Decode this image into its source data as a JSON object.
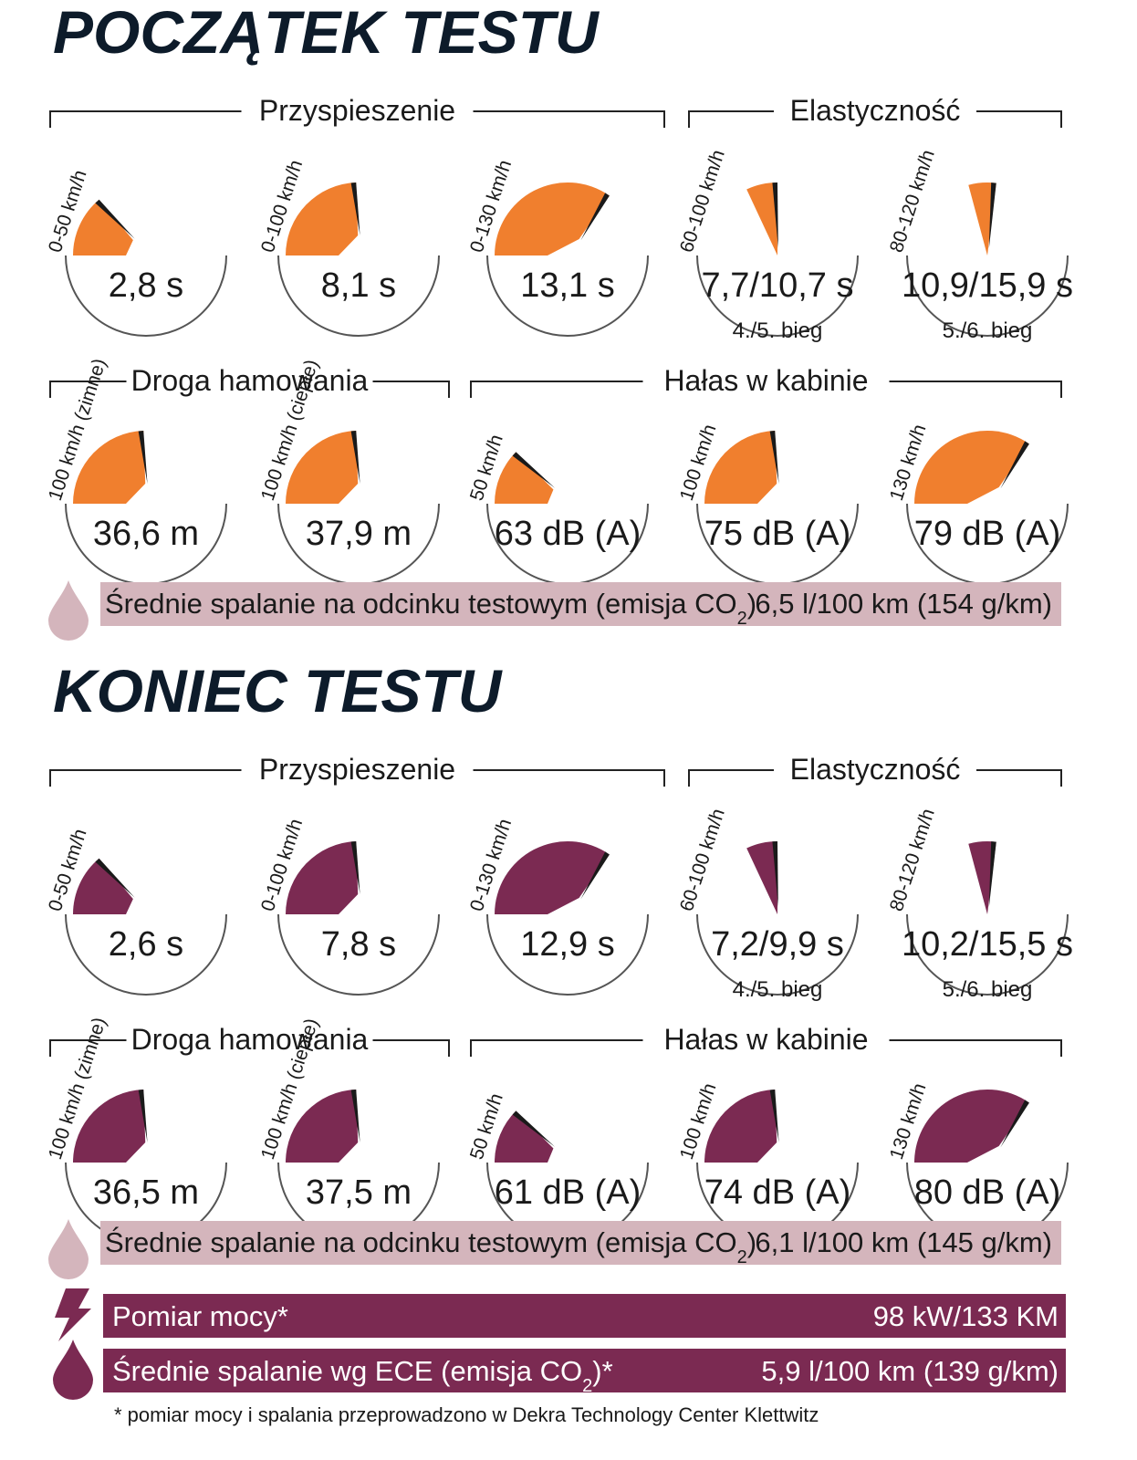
{
  "sections": [
    {
      "title": "POCZĄTEK TESTU",
      "headers": [
        "Przyspieszenie",
        "Elastyczność",
        "Droga hamowania",
        "Hałas w kabinie"
      ],
      "gauges": [
        {
          "label": "0-50 km/h",
          "value": "2,8 s"
        },
        {
          "label": "0-100 km/h",
          "value": "8,1 s"
        },
        {
          "label": "0-130 km/h",
          "value": "13,1 s"
        },
        {
          "label": "60-100 km/h",
          "value": "7,7/10,7 s",
          "note": "4./5. bieg"
        },
        {
          "label": "80-120 km/h",
          "value": "10,9/15,9 s",
          "note": "5./6. bieg"
        },
        {
          "label": "100 km/h (zimne)",
          "value": "36,6 m"
        },
        {
          "label": "100 km/h (ciepłe)",
          "value": "37,9 m"
        },
        {
          "label": "50 km/h",
          "value": "63 dB (A)"
        },
        {
          "label": "100 km/h",
          "value": "75 dB (A)"
        },
        {
          "label": "130 km/h",
          "value": "79 dB (A)"
        }
      ],
      "consumption": {
        "label_start": "Średnie spalanie na odcinku testowym (emisja CO",
        "label_sub": "2",
        "label_end": ")",
        "value": "6,5 l/100 km (154 g/km)"
      }
    },
    {
      "title": "KONIEC TESTU",
      "headers": [
        "Przyspieszenie",
        "Elastyczność",
        "Droga hamowania",
        "Hałas w kabinie"
      ],
      "gauges": [
        {
          "label": "0-50 km/h",
          "value": "2,6 s"
        },
        {
          "label": "0-100 km/h",
          "value": "7,8 s"
        },
        {
          "label": "0-130 km/h",
          "value": "12,9 s"
        },
        {
          "label": "60-100 km/h",
          "value": "7,2/9,9 s",
          "note": "4./5. bieg"
        },
        {
          "label": "80-120 km/h",
          "value": "10,2/15,5 s",
          "note": "5./6. bieg"
        },
        {
          "label": "100 km/h (zimne)",
          "value": "36,5 m"
        },
        {
          "label": "100 km/h (ciepłe)",
          "value": "37,5 m"
        },
        {
          "label": "50 km/h",
          "value": "61 dB (A)"
        },
        {
          "label": "100 km/h",
          "value": "74 dB (A)"
        },
        {
          "label": "130 km/h",
          "value": "80 dB (A)"
        }
      ],
      "consumption": {
        "label_start": "Średnie spalanie na odcinku testowym (emisja CO",
        "label_sub": "2",
        "label_end": ")",
        "value": "6,1 l/100 km (145 g/km)"
      }
    }
  ],
  "power": {
    "label": "Pomiar mocy*",
    "value": "98 kW/133 KM"
  },
  "ece": {
    "label_start": "Średnie spalanie wg ECE (emisja CO",
    "label_sub": "2",
    "label_end": ")*",
    "value": "5,9 l/100 km (139 g/km)"
  },
  "footnote": "* pomiar mocy i spalania przeprowadzono w Dekra Technology Center Klettwitz"
}
